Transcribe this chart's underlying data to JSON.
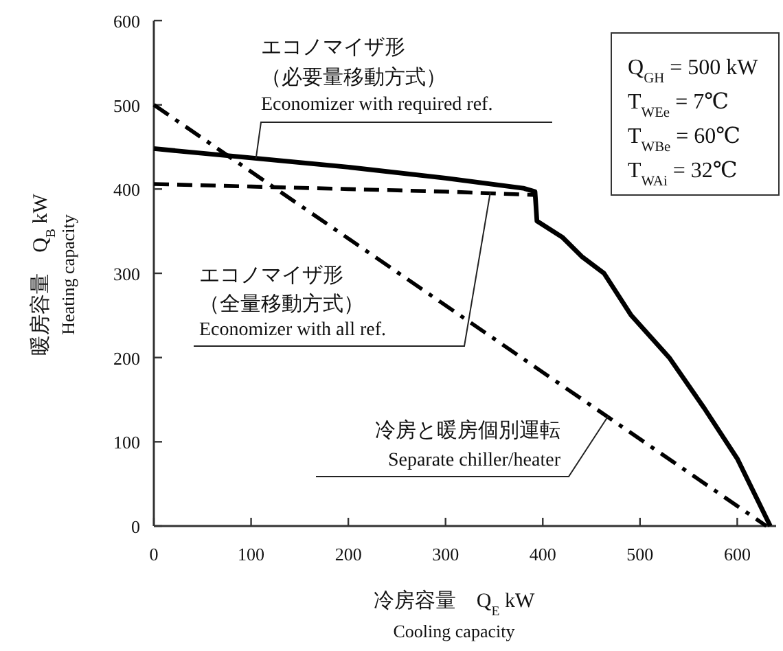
{
  "chart_data": {
    "type": "line",
    "xlabel": "冷房容量　Q$_{E}$ kW\nCooling capacity",
    "ylabel": "暖房容量　Q$_{B}$ kW\nHeating capacity",
    "xlim": [
      0,
      640
    ],
    "ylim": [
      0,
      600
    ],
    "xticks": [
      0,
      100,
      200,
      300,
      400,
      500,
      600
    ],
    "yticks": [
      0,
      100,
      200,
      300,
      400,
      500,
      600
    ],
    "series": [
      {
        "color": "#000000",
        "line_style": "solid",
        "x": [
          0,
          100,
          200,
          300,
          380,
          392,
          394,
          420,
          440,
          463,
          491,
          530,
          566,
          600,
          634
        ],
        "values": [
          448,
          437,
          426,
          413,
          401,
          397,
          362,
          343,
          320,
          300,
          250,
          200,
          140,
          80,
          0
        ]
      },
      {
        "color": "#000000",
        "line_style": "dashed",
        "x": [
          0,
          100,
          200,
          300,
          392
        ],
        "values": [
          406,
          403,
          400,
          397,
          393
        ]
      },
      {
        "color": "#000000",
        "line_style": "dashdot",
        "x": [
          0,
          630
        ],
        "values": [
          500,
          0
        ]
      }
    ],
    "annotations": [
      "エコノマイザ形",
      "（必要量移動方式）",
      {
        "text": "Economizer with required ref.",
        "x": 105,
        "y": 436
      },
      "エコノマイザ形",
      "（全量移動方式）",
      {
        "text": "Economizer  with all ref.",
        "x": 346,
        "y": 396
      },
      "冷房と暖房個別運転",
      {
        "text": "Separate chiller/heater",
        "x": 467,
        "y": 130
      },
      "Q$_{GH}$ = 500 kW",
      "T$_{WEe}$ = 7℃",
      "T$_{WBe}$ = 60℃",
      "T$_{WAi}$ = 32℃"
    ]
  }
}
